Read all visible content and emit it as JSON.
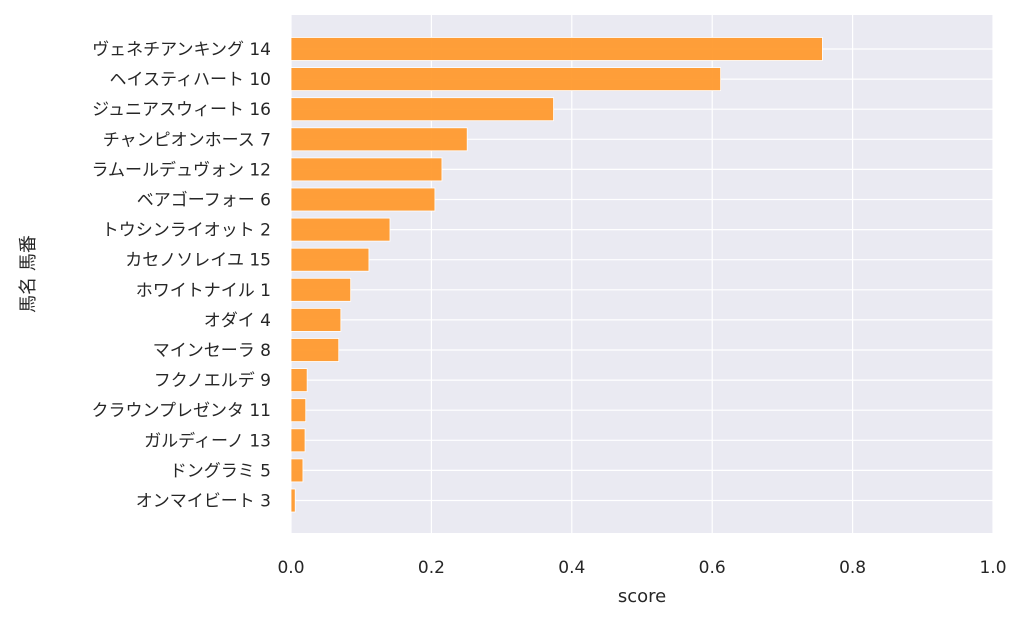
{
  "chart_data": {
    "type": "bar",
    "orientation": "horizontal",
    "categories": [
      "ヴェネチアンキング 14",
      "ヘイスティハート 10",
      "ジュニアスウィート 16",
      "チャンピオンホース 7",
      "ラムールデュヴォン 12",
      "ベアゴーフォー 6",
      "トウシンライオット 2",
      "カセノソレイユ 15",
      "ホワイトナイル 1",
      "オダイ 4",
      "マインセーラ 8",
      "フクノエルデ 9",
      "クラウンプレゼンタ 11",
      "ガルディーノ 13",
      "ドングラミ 5",
      "オンマイビート 3"
    ],
    "values": [
      0.757,
      0.612,
      0.374,
      0.251,
      0.215,
      0.205,
      0.141,
      0.111,
      0.085,
      0.071,
      0.068,
      0.023,
      0.021,
      0.02,
      0.017,
      0.006
    ],
    "xlabel": "score",
    "ylabel": "馬名 馬番",
    "xlim": [
      0,
      1.0
    ],
    "xticks": [
      "0.0",
      "0.2",
      "0.4",
      "0.6",
      "0.8",
      "1.0"
    ],
    "grid": true,
    "colors": {
      "bar": "#ff9a2e",
      "background": "#eaeaf2",
      "grid": "#ffffff"
    }
  }
}
